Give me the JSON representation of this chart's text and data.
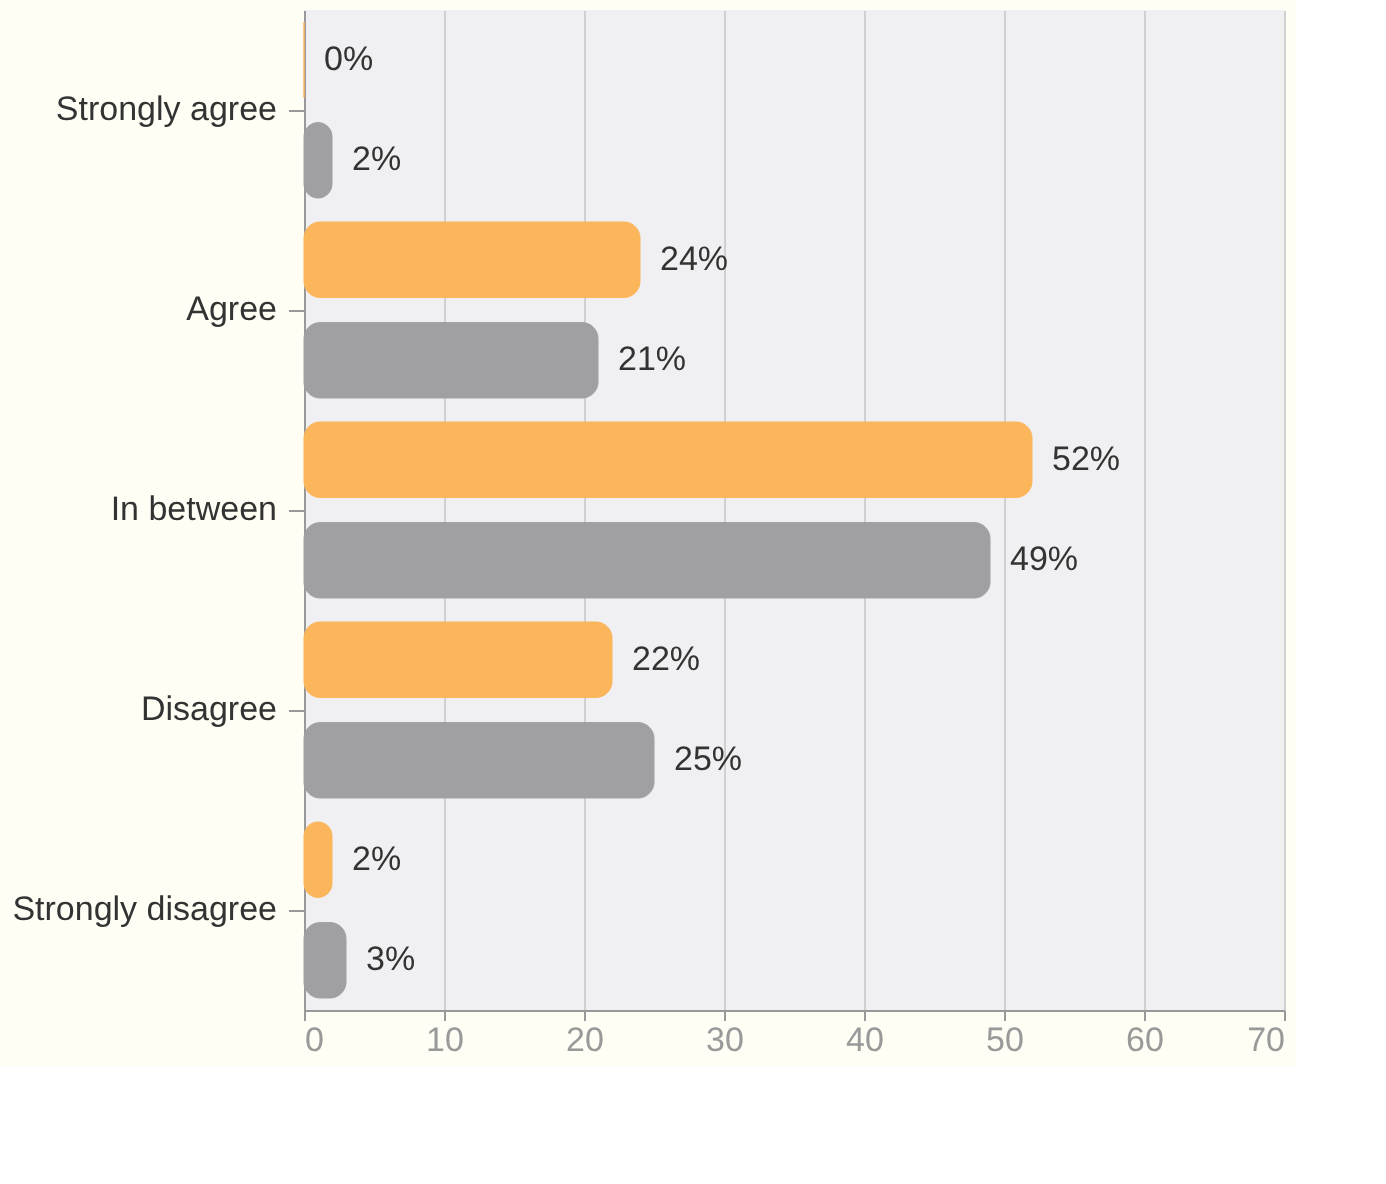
{
  "chart_data": {
    "type": "bar",
    "orientation": "horizontal",
    "categories": [
      "Strongly agree",
      "Agree",
      "In between",
      "Disagree",
      "Strongly disagree"
    ],
    "series": [
      {
        "color": "#fbb65c",
        "values": [
          0,
          24,
          52,
          22,
          2
        ],
        "value_labels": [
          "0%",
          "24%",
          "52%",
          "22%",
          "2%"
        ]
      },
      {
        "color": "#a0a0a3",
        "values": [
          2,
          21,
          49,
          25,
          3
        ],
        "value_labels": [
          "2%",
          "21%",
          "49%",
          "25%",
          "3%"
        ]
      }
    ],
    "xlim": [
      0,
      70
    ],
    "xticks": [
      0,
      10,
      20,
      30,
      40,
      50,
      60,
      70
    ],
    "grid": "x",
    "legend": false
  }
}
